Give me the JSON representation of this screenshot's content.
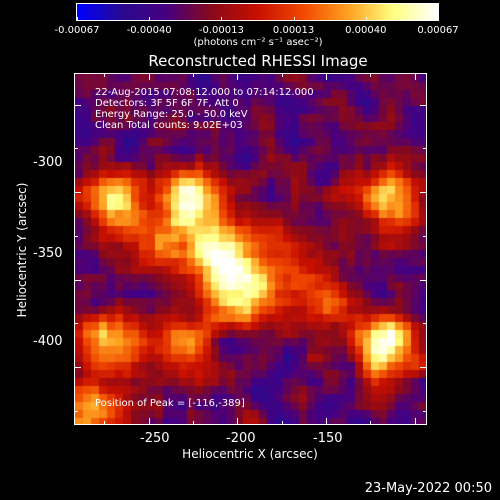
{
  "colorbar": {
    "tick_labels": [
      "-0.00067",
      "-0.00040",
      "-0.00013",
      "0.00013",
      "0.00040",
      "0.00067"
    ],
    "units": "(photons cm⁻² s⁻¹ asec⁻²)",
    "min": -0.00067,
    "max": 0.00067,
    "colormap": [
      "#0000ff",
      "#2a0a90",
      "#480080",
      "#8a0a1a",
      "#c81000",
      "#f04800",
      "#ffa020",
      "#ffff80",
      "#ffffff"
    ]
  },
  "plot": {
    "title": "Reconstructed RHESSI Image",
    "info_lines": [
      "22-Aug-2015 07:08:12.000 to 07:14:12.000",
      "Detectors: 3F 5F 6F 7F, Att 0",
      "Energy Range: 25.0 - 50.0 keV",
      "Clean     Total counts: 9.02E+03"
    ],
    "peak_text": "Position of Peak = [-116,-389]",
    "xlabel": "Heliocentric X (arcsec)",
    "ylabel": "Heliocentric Y (arcsec)",
    "x_ticks": [
      "-250",
      "-200",
      "-150"
    ],
    "y_ticks": [
      "-300",
      "-350",
      "-400"
    ]
  },
  "chart_data": {
    "type": "heatmap",
    "title": "Reconstructed RHESSI Image",
    "xlabel": "Heliocentric X (arcsec)",
    "ylabel": "Heliocentric Y (arcsec)",
    "xlim": [
      -292,
      -93
    ],
    "ylim": [
      -433,
      -232
    ],
    "zlim": [
      -0.00067,
      0.00067
    ],
    "x_ticks": [
      -250,
      -200,
      -150
    ],
    "y_ticks": [
      -300,
      -350,
      -400
    ],
    "peak": [
      -116,
      -389
    ],
    "sources": [
      {
        "x": -226,
        "y": -305,
        "level": 1.0
      },
      {
        "x": -212,
        "y": -337,
        "level": 0.9
      },
      {
        "x": -196,
        "y": -360,
        "level": 0.85
      },
      {
        "x": -270,
        "y": -305,
        "level": 0.75
      },
      {
        "x": -114,
        "y": -305,
        "level": 0.85
      },
      {
        "x": -116,
        "y": -389,
        "level": 1.0
      },
      {
        "x": -272,
        "y": -385,
        "level": 0.75
      },
      {
        "x": -230,
        "y": -388,
        "level": 0.55
      },
      {
        "x": -155,
        "y": -358,
        "level": 0.5
      },
      {
        "x": -282,
        "y": -425,
        "level": 0.7
      },
      {
        "x": -250,
        "y": -330,
        "level": 0.45
      },
      {
        "x": -175,
        "y": -330,
        "level": 0.4
      }
    ]
  },
  "footer": {
    "date": "23-May-2022 00:50"
  }
}
